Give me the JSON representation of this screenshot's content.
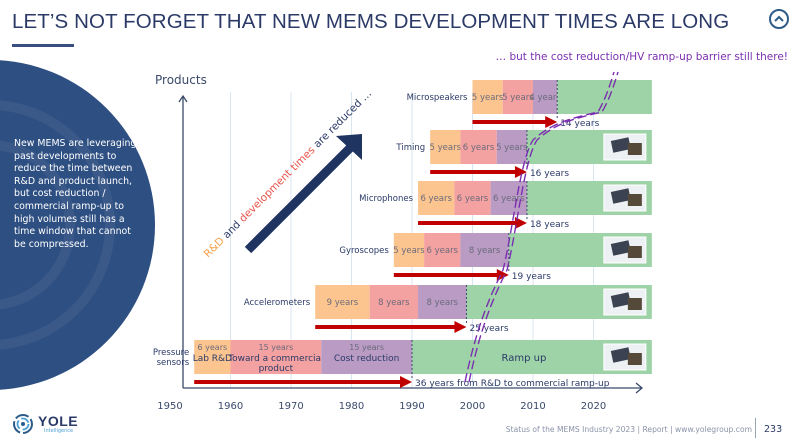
{
  "header": {
    "title": "LET’S NOT FORGET THAT NEW MEMS DEVELOPMENT TIMES ARE LONG",
    "scroll_top_icon": "chevron-up-circle-icon",
    "barrier_note": "… but the cost reduction/HV ramp-up  barrier still there!"
  },
  "sidebar": {
    "text": "New MEMS are leveraging past developments to reduce the time between R&D and product launch, but cost reduction / commercial ramp-up to high volumes still has a time window that cannot be compressed."
  },
  "footer": {
    "logo_name": "YOLE",
    "logo_sub": "Intelligence",
    "text": "Status of the MEMS Industry 2023 | Report | www.yolegroup.com",
    "page": "233"
  },
  "colors": {
    "lab_rd": "#fcc58f",
    "toward_commercial": "#f4a1a1",
    "cost_reduction": "#b99bc4",
    "ramp_up": "#9ed3a7",
    "arrow_red": "#c00000",
    "barrier_purple": "#7b2fb0",
    "axis": "#3a4a6b",
    "navy": "#1f3461",
    "orange_text": "#f5a04a",
    "red_text": "#e8524a"
  },
  "chart_data": {
    "type": "gantt-timeline",
    "title": "",
    "xlabel": "",
    "ylabel": "Products",
    "x_ticks": [
      1950,
      1960,
      1970,
      1980,
      1990,
      2000,
      2010,
      2020
    ],
    "xlim": [
      1950,
      2027
    ],
    "grid": true,
    "diagonal_annotation": {
      "parts": [
        {
          "text": "R&D",
          "color": "#f5a04a"
        },
        {
          "text": " and ",
          "color": "#2b3a67"
        },
        {
          "text": "development times",
          "color": "#e8524a"
        },
        {
          "text": " are reduced …",
          "color": "#2b3a67"
        }
      ]
    },
    "phases": [
      "Lab R&D",
      "Toward a commercial product",
      "Cost reduction",
      "Ramp up"
    ],
    "products": [
      {
        "name": "Microspeakers",
        "start": 2000,
        "segments": [
          {
            "phase": "Lab R&D",
            "years": 5,
            "label": "5 years"
          },
          {
            "phase": "Toward a commercial product",
            "years": 5,
            "label": "5 years"
          },
          {
            "phase": "Cost reduction",
            "years": 4,
            "label": "4 years"
          }
        ],
        "ramp_end": 2027,
        "total_label": "14 years",
        "image": "microspeaker-photo"
      },
      {
        "name": "Timing",
        "start": 1993,
        "segments": [
          {
            "phase": "Lab R&D",
            "years": 5,
            "label": "5 years"
          },
          {
            "phase": "Toward a commercial product",
            "years": 6,
            "label": "6 years"
          },
          {
            "phase": "Cost reduction",
            "years": 5,
            "label": "5 years"
          }
        ],
        "ramp_end": 2027,
        "total_label": "16 years",
        "image": "timing-device-photo"
      },
      {
        "name": "Microphones",
        "start": 1991,
        "segments": [
          {
            "phase": "Lab R&D",
            "years": 6,
            "label": "6 years"
          },
          {
            "phase": "Toward a commercial product",
            "years": 6,
            "label": "6 years"
          },
          {
            "phase": "Cost reduction",
            "years": 6,
            "label": "6 years"
          }
        ],
        "ramp_end": 2027,
        "total_label": "18 years",
        "image": "microphone-chips-photo"
      },
      {
        "name": "Gyroscopes",
        "start": 1987,
        "segments": [
          {
            "phase": "Lab R&D",
            "years": 5,
            "label": "5 years"
          },
          {
            "phase": "Toward a commercial product",
            "years": 6,
            "label": "6 years"
          },
          {
            "phase": "Cost reduction",
            "years": 8,
            "label": "8 years"
          }
        ],
        "ramp_end": 2027,
        "total_label": "19 years",
        "image": "gyroscope-chips-photo"
      },
      {
        "name": "Accelerometers",
        "start": 1974,
        "segments": [
          {
            "phase": "Lab R&D",
            "years": 9,
            "label": "9 years"
          },
          {
            "phase": "Toward a commercial product",
            "years": 8,
            "label": "8 years"
          },
          {
            "phase": "Cost reduction",
            "years": 8,
            "label": "8 years"
          }
        ],
        "ramp_end": 2027,
        "total_label": "25 years",
        "image": "accelerometer-chip-photo"
      },
      {
        "name": "Pressure sensors",
        "start": 1954,
        "segments": [
          {
            "phase": "Lab R&D",
            "years": 6,
            "label": "6 years",
            "sublabel": "Lab R&D"
          },
          {
            "phase": "Toward a commercial product",
            "years": 15,
            "label": "15 years",
            "sublabel": "Toward a commercial product"
          },
          {
            "phase": "Cost reduction",
            "years": 15,
            "label": "15 years",
            "sublabel": "Cost reduction"
          }
        ],
        "ramp_end": 2027,
        "ramp_label": "Ramp up",
        "total_label": "36 years from R&D to commercial ramp-up",
        "image": "pressure-sensor-photo"
      }
    ]
  }
}
